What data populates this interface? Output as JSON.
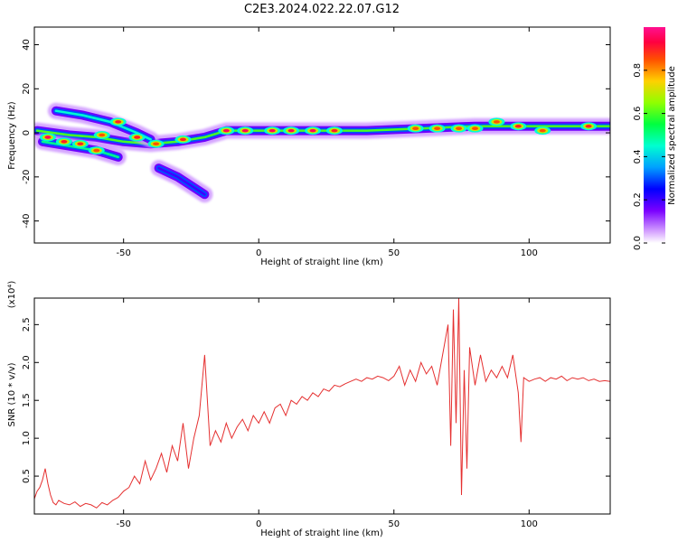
{
  "title": "C2E3.2024.022.22.07.G12",
  "chart_data": [
    {
      "type": "heatmap",
      "xlabel": "Height of straight line (km)",
      "ylabel": "Frequency (Hz)",
      "xlim": [
        -83,
        130
      ],
      "ylim": [
        -50,
        48
      ],
      "xticks": [
        -50,
        0,
        50,
        100
      ],
      "yticks": [
        40,
        20,
        0,
        -20,
        -40
      ],
      "colorbar": {
        "label": "Normalized spectral amplitude",
        "range": [
          0,
          1
        ],
        "ticks": [
          "0.0",
          "0.2",
          "0.4",
          "0.6",
          "0.8"
        ],
        "tick_values": [
          0,
          0.2,
          0.4,
          0.6,
          0.8
        ]
      },
      "ridges": [
        {
          "points": [
            [
              -82,
              1
            ],
            [
              -70,
              -1
            ],
            [
              -60,
              -2
            ],
            [
              -50,
              -4
            ],
            [
              -40,
              -5
            ],
            [
              -30,
              -4
            ],
            [
              -20,
              -2
            ],
            [
              -12,
              1
            ],
            [
              0,
              1
            ],
            [
              20,
              1
            ],
            [
              40,
              1
            ],
            [
              60,
              2
            ],
            [
              80,
              3
            ],
            [
              100,
              3
            ],
            [
              130,
              3
            ]
          ],
          "amplitude": 0.8
        },
        {
          "points": [
            [
              -80,
              -4
            ],
            [
              -70,
              -6
            ],
            [
              -60,
              -8
            ],
            [
              -52,
              -11
            ]
          ],
          "amplitude": 0.5
        },
        {
          "points": [
            [
              -75,
              10
            ],
            [
              -65,
              8
            ],
            [
              -55,
              5
            ],
            [
              -45,
              0
            ],
            [
              -40,
              -3
            ]
          ],
          "amplitude": 0.45
        },
        {
          "points": [
            [
              -37,
              -16
            ],
            [
              -30,
              -20
            ],
            [
              -25,
              -24
            ],
            [
              -20,
              -28
            ]
          ],
          "amplitude": 0.2
        }
      ],
      "hotspots": [
        {
          "x": -78,
          "y": -2,
          "a": 0.95
        },
        {
          "x": -72,
          "y": -4,
          "a": 0.9
        },
        {
          "x": -66,
          "y": -5,
          "a": 0.9
        },
        {
          "x": -60,
          "y": -8,
          "a": 0.85
        },
        {
          "x": -58,
          "y": -1,
          "a": 0.85
        },
        {
          "x": -52,
          "y": 5,
          "a": 0.9
        },
        {
          "x": -45,
          "y": -2,
          "a": 0.9
        },
        {
          "x": -38,
          "y": -5,
          "a": 0.85
        },
        {
          "x": -28,
          "y": -3,
          "a": 0.9
        },
        {
          "x": -12,
          "y": 1,
          "a": 0.95
        },
        {
          "x": -5,
          "y": 1,
          "a": 0.95
        },
        {
          "x": 5,
          "y": 1,
          "a": 0.95
        },
        {
          "x": 12,
          "y": 1,
          "a": 0.95
        },
        {
          "x": 20,
          "y": 1,
          "a": 0.95
        },
        {
          "x": 28,
          "y": 1,
          "a": 0.9
        },
        {
          "x": 58,
          "y": 2,
          "a": 0.85
        },
        {
          "x": 66,
          "y": 2,
          "a": 0.85
        },
        {
          "x": 74,
          "y": 2,
          "a": 0.85
        },
        {
          "x": 80,
          "y": 2,
          "a": 0.85
        },
        {
          "x": 88,
          "y": 5,
          "a": 0.85
        },
        {
          "x": 96,
          "y": 3,
          "a": 0.9
        },
        {
          "x": 105,
          "y": 1,
          "a": 0.85
        },
        {
          "x": 122,
          "y": 3,
          "a": 0.9
        }
      ]
    },
    {
      "type": "line",
      "xlabel": "Height of straight line (km)",
      "ylabel": "SNR (10 * v/v)",
      "y_multiplier": "(x10⁴)",
      "xlim": [
        -83,
        130
      ],
      "ylim": [
        0,
        2.85
      ],
      "xticks": [
        -50,
        0,
        50,
        100
      ],
      "yticks": [
        0.5,
        1.0,
        1.5,
        2.0,
        2.5
      ],
      "series": [
        {
          "color": "#e53030",
          "x": [
            -83,
            -82,
            -81,
            -80,
            -79,
            -78,
            -77,
            -76,
            -75,
            -74,
            -72,
            -70,
            -68,
            -66,
            -64,
            -62,
            -60,
            -58,
            -56,
            -54,
            -52,
            -50,
            -48,
            -46,
            -44,
            -42,
            -40,
            -38,
            -36,
            -34,
            -32,
            -30,
            -28,
            -26,
            -24,
            -22,
            -20,
            -18,
            -16,
            -14,
            -12,
            -10,
            -8,
            -6,
            -4,
            -2,
            0,
            2,
            4,
            6,
            8,
            10,
            12,
            14,
            16,
            18,
            20,
            22,
            24,
            26,
            28,
            30,
            32,
            34,
            36,
            38,
            40,
            42,
            44,
            46,
            48,
            50,
            52,
            54,
            56,
            58,
            60,
            62,
            64,
            66,
            68,
            70,
            71,
            72,
            73,
            74,
            75,
            76,
            77,
            78,
            80,
            82,
            84,
            86,
            88,
            90,
            92,
            94,
            96,
            97,
            98,
            100,
            102,
            104,
            106,
            108,
            110,
            112,
            114,
            116,
            118,
            120,
            122,
            124,
            126,
            128,
            130
          ],
          "values": [
            0.2,
            0.3,
            0.35,
            0.45,
            0.6,
            0.4,
            0.25,
            0.15,
            0.12,
            0.18,
            0.14,
            0.12,
            0.16,
            0.1,
            0.14,
            0.12,
            0.08,
            0.15,
            0.12,
            0.18,
            0.22,
            0.3,
            0.35,
            0.5,
            0.4,
            0.7,
            0.45,
            0.6,
            0.8,
            0.55,
            0.9,
            0.7,
            1.2,
            0.6,
            1.0,
            1.3,
            2.1,
            0.9,
            1.1,
            0.95,
            1.2,
            1.0,
            1.15,
            1.25,
            1.1,
            1.3,
            1.2,
            1.35,
            1.2,
            1.4,
            1.45,
            1.3,
            1.5,
            1.45,
            1.55,
            1.5,
            1.6,
            1.55,
            1.65,
            1.62,
            1.7,
            1.68,
            1.72,
            1.75,
            1.78,
            1.75,
            1.8,
            1.78,
            1.82,
            1.8,
            1.76,
            1.82,
            1.95,
            1.7,
            1.9,
            1.75,
            2.0,
            1.85,
            1.95,
            1.7,
            2.1,
            2.5,
            0.9,
            2.7,
            1.2,
            2.85,
            0.25,
            1.9,
            0.6,
            2.2,
            1.7,
            2.1,
            1.75,
            1.9,
            1.8,
            1.95,
            1.8,
            2.1,
            1.6,
            0.95,
            1.8,
            1.75,
            1.78,
            1.8,
            1.75,
            1.8,
            1.78,
            1.82,
            1.76,
            1.8,
            1.78,
            1.8,
            1.76,
            1.78,
            1.75,
            1.76,
            1.75
          ]
        }
      ]
    }
  ]
}
